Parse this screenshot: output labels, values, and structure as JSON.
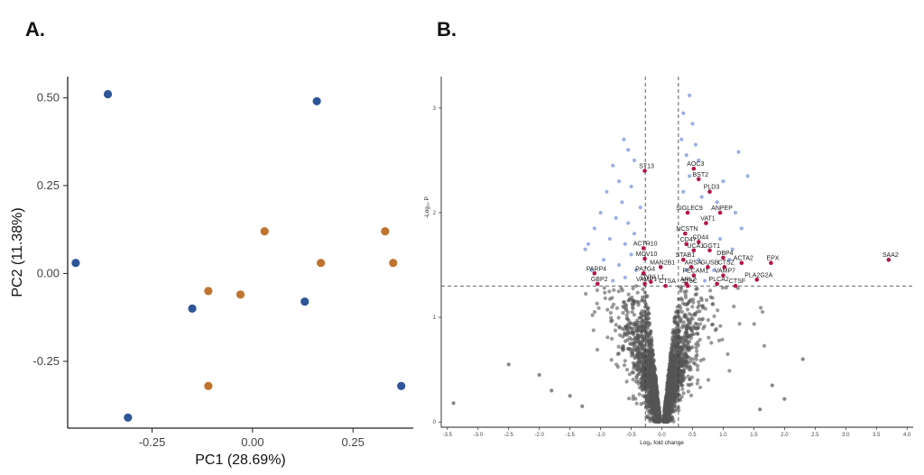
{
  "panels": {
    "a_label": "A.",
    "b_label": "B."
  },
  "colors": {
    "group_blue": "#2e5597",
    "group_orange": "#c0742e",
    "nonsig": "#555555",
    "fc_only": "#8aa2e0",
    "sig": "#b4154b"
  },
  "chart_data": [
    {
      "type": "scatter",
      "title": "",
      "xlabel": "PC1 (28.69%)",
      "ylabel": "PC2 (11.38%)",
      "xlim": [
        -0.46,
        0.4
      ],
      "ylim": [
        -0.44,
        0.56
      ],
      "xticks": [
        -0.25,
        0.0,
        0.25
      ],
      "xtick_labels": [
        "-0.25",
        "0.00",
        "0.25"
      ],
      "yticks": [
        -0.25,
        0.0,
        0.25,
        0.5
      ],
      "ytick_labels": [
        "-0.25",
        "0.00",
        "0.25",
        "0.50"
      ],
      "grid": false,
      "series": [
        {
          "color": "#2e5597",
          "points": [
            [
              -0.36,
              0.51
            ],
            [
              0.16,
              0.49
            ],
            [
              -0.44,
              0.03
            ],
            [
              -0.15,
              -0.1
            ],
            [
              0.13,
              -0.08
            ],
            [
              -0.31,
              -0.41
            ],
            [
              0.37,
              -0.32
            ]
          ]
        },
        {
          "color": "#c0742e",
          "points": [
            [
              0.03,
              0.12
            ],
            [
              0.33,
              0.12
            ],
            [
              0.35,
              0.03
            ],
            [
              0.17,
              0.03
            ],
            [
              -0.11,
              -0.05
            ],
            [
              -0.03,
              -0.06
            ],
            [
              -0.11,
              -0.32
            ]
          ]
        }
      ]
    },
    {
      "type": "scatter",
      "title": "",
      "xlabel": "Log₂ fold change",
      "ylabel": "-Log₁₀ P",
      "xlim": [
        -3.6,
        4.1
      ],
      "ylim": [
        -0.05,
        3.3
      ],
      "xticks": [
        -3.5,
        -3.0,
        -2.5,
        -2.0,
        -1.5,
        -1.0,
        -0.5,
        0.0,
        0.5,
        1.0,
        1.5,
        2.0,
        2.5,
        3.0,
        3.5,
        4.0
      ],
      "xtick_labels": [
        "-3.5",
        "-3.0",
        "-2.5",
        "-2.0",
        "-1.5",
        "-1.0",
        "-0.5",
        "0.0",
        "0.5",
        "1.0",
        "1.5",
        "2.0",
        "2.5",
        "3.0",
        "3.5",
        "4.0"
      ],
      "yticks": [
        0,
        1,
        2,
        3
      ],
      "ytick_labels": [
        "0",
        "1",
        "2",
        "3"
      ],
      "grid": false,
      "thresholds": {
        "fold_change": [
          -0.27,
          0.27
        ],
        "p_value_line": 1.3
      },
      "significant_genes": [
        {
          "label": "SAA2",
          "x": 3.7,
          "y": 1.55
        },
        {
          "label": "AOC3",
          "x": 0.52,
          "y": 2.42
        },
        {
          "label": "ST13",
          "x": -0.28,
          "y": 2.4
        },
        {
          "label": "BST2",
          "x": 0.6,
          "y": 2.32
        },
        {
          "label": "PLD3",
          "x": 0.78,
          "y": 2.2
        },
        {
          "label": "SIGLEC9",
          "x": 0.42,
          "y": 2.0
        },
        {
          "label": "ANPEP",
          "x": 0.95,
          "y": 2.0
        },
        {
          "label": "VAT1",
          "x": 0.72,
          "y": 1.9
        },
        {
          "label": "NCSTN",
          "x": 0.38,
          "y": 1.8
        },
        {
          "label": "CD47",
          "x": 0.4,
          "y": 1.7
        },
        {
          "label": "CD44",
          "x": 0.6,
          "y": 1.72
        },
        {
          "label": "UCA1",
          "x": 0.52,
          "y": 1.64
        },
        {
          "label": "GGT1",
          "x": 0.78,
          "y": 1.64
        },
        {
          "label": "DBP4",
          "x": 1.0,
          "y": 1.57
        },
        {
          "label": "ACTA2",
          "x": 1.3,
          "y": 1.52
        },
        {
          "label": "EPX",
          "x": 1.78,
          "y": 1.52
        },
        {
          "label": "ACTR10",
          "x": -0.3,
          "y": 1.66
        },
        {
          "label": "MOV10",
          "x": -0.28,
          "y": 1.56
        },
        {
          "label": "STAB1",
          "x": 0.35,
          "y": 1.55
        },
        {
          "label": "ARSA",
          "x": 0.48,
          "y": 1.48
        },
        {
          "label": "GUSB",
          "x": 0.75,
          "y": 1.48
        },
        {
          "label": "CTSZ",
          "x": 1.02,
          "y": 1.48
        },
        {
          "label": "MAN2B1",
          "x": -0.02,
          "y": 1.48
        },
        {
          "label": "PARP4",
          "x": -1.1,
          "y": 1.42
        },
        {
          "label": "PA2G4",
          "x": -0.3,
          "y": 1.42
        },
        {
          "label": "PECAM1",
          "x": 0.52,
          "y": 1.4
        },
        {
          "label": "VAMP7",
          "x": 1.0,
          "y": 1.4
        },
        {
          "label": "PLA2G2A",
          "x": 1.55,
          "y": 1.36
        },
        {
          "label": "GBP2",
          "x": -1.05,
          "y": 1.32
        },
        {
          "label": "VAMP1",
          "x": -0.28,
          "y": 1.32
        },
        {
          "label": "DYNLL1",
          "x": -0.18,
          "y": 1.34
        },
        {
          "label": "ARL2",
          "x": 0.4,
          "y": 1.32
        },
        {
          "label": "PLCA2",
          "x": 0.9,
          "y": 1.32
        },
        {
          "label": "CTSF",
          "x": 1.2,
          "y": 1.3
        },
        {
          "label": "CTSA",
          "x": 0.06,
          "y": 1.3
        },
        {
          "label": "ST5C",
          "x": 0.42,
          "y": 1.3
        }
      ],
      "fold_change_only_points": [
        [
          -0.55,
          2.6
        ],
        [
          -0.62,
          2.7
        ],
        [
          -0.45,
          2.5
        ],
        [
          -0.8,
          2.45
        ],
        [
          -0.7,
          2.3
        ],
        [
          -0.5,
          2.25
        ],
        [
          -0.9,
          2.2
        ],
        [
          -0.65,
          2.1
        ],
        [
          -0.35,
          2.05
        ],
        [
          -1.0,
          2.0
        ],
        [
          -0.75,
          1.95
        ],
        [
          -0.55,
          1.9
        ],
        [
          -1.1,
          1.85
        ],
        [
          -0.45,
          1.8
        ],
        [
          -0.85,
          1.75
        ],
        [
          -1.2,
          1.7
        ],
        [
          -0.6,
          1.7
        ],
        [
          -1.25,
          1.65
        ],
        [
          -0.5,
          1.6
        ],
        [
          -0.95,
          1.55
        ],
        [
          -0.7,
          1.5
        ],
        [
          -1.15,
          1.45
        ],
        [
          -0.42,
          1.45
        ],
        [
          -0.6,
          1.38
        ],
        [
          -0.8,
          1.35
        ],
        [
          0.45,
          3.12
        ],
        [
          0.35,
          2.95
        ],
        [
          0.5,
          2.85
        ],
        [
          0.32,
          2.7
        ],
        [
          0.55,
          2.65
        ],
        [
          0.4,
          2.55
        ],
        [
          0.6,
          2.5
        ],
        [
          1.25,
          2.58
        ],
        [
          1.4,
          2.35
        ],
        [
          1.0,
          2.3
        ],
        [
          0.9,
          2.1
        ],
        [
          1.2,
          2.0
        ],
        [
          0.65,
          2.15
        ],
        [
          1.3,
          1.85
        ],
        [
          0.95,
          1.75
        ],
        [
          1.15,
          1.65
        ],
        [
          0.35,
          2.2
        ],
        [
          0.45,
          2.35
        ],
        [
          1.1,
          1.55
        ],
        [
          0.6,
          1.55
        ],
        [
          0.85,
          1.45
        ],
        [
          0.4,
          1.45
        ],
        [
          0.7,
          1.35
        ]
      ],
      "nonsig_note": ""
    }
  ]
}
